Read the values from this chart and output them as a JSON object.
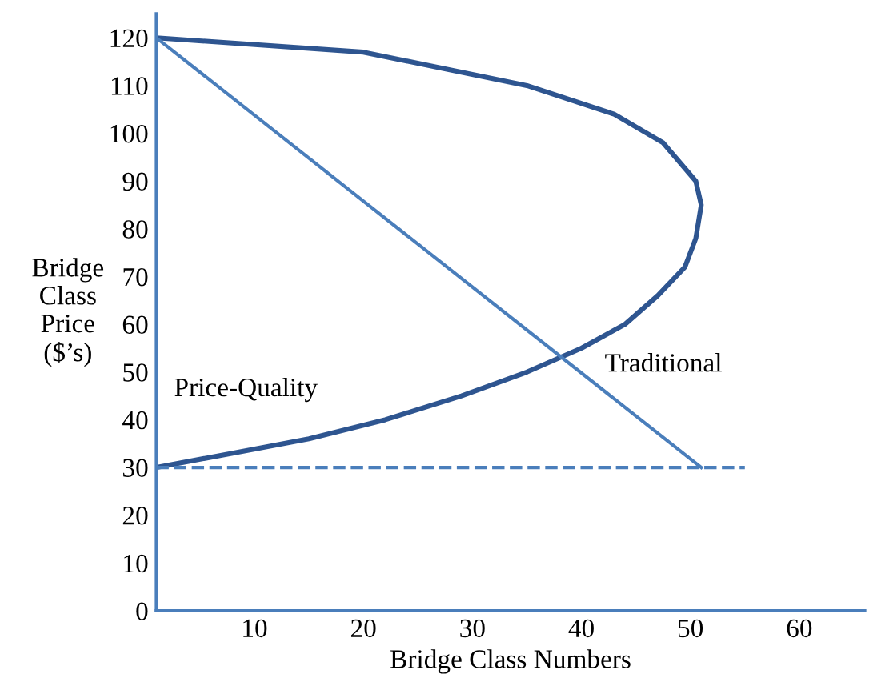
{
  "chart_data": {
    "type": "line",
    "xlabel": "Bridge Class Numbers",
    "ylabel": "Bridge\nClass\nPrice\n($’s)",
    "xlim": [
      1,
      66
    ],
    "ylim": [
      0,
      125
    ],
    "xticks": [
      10,
      20,
      30,
      40,
      50,
      60
    ],
    "yticks": [
      0,
      10,
      20,
      30,
      40,
      50,
      60,
      70,
      80,
      90,
      100,
      110,
      120
    ],
    "grid": false,
    "legend": false,
    "marker": "none",
    "series": [
      {
        "name": "Price-Quality",
        "color": "#2e5590",
        "line_style": "solid",
        "x": [
          1,
          20,
          35,
          43,
          47.5,
          50.5,
          51,
          50.5,
          49.5,
          47,
          44,
          40,
          35,
          29,
          22,
          15,
          8,
          1
        ],
        "values": [
          120,
          117,
          110,
          104,
          98,
          90,
          85,
          78,
          72,
          66,
          60,
          55,
          50,
          45,
          40,
          36,
          33,
          30
        ]
      },
      {
        "name": "Traditional",
        "color": "#4a7ebb",
        "line_style": "solid",
        "x": [
          1,
          51
        ],
        "values": [
          120,
          30
        ]
      },
      {
        "color": "#4a7ebb",
        "line_style": "dashed",
        "x": [
          1,
          55
        ],
        "values": [
          30,
          30
        ]
      }
    ]
  }
}
